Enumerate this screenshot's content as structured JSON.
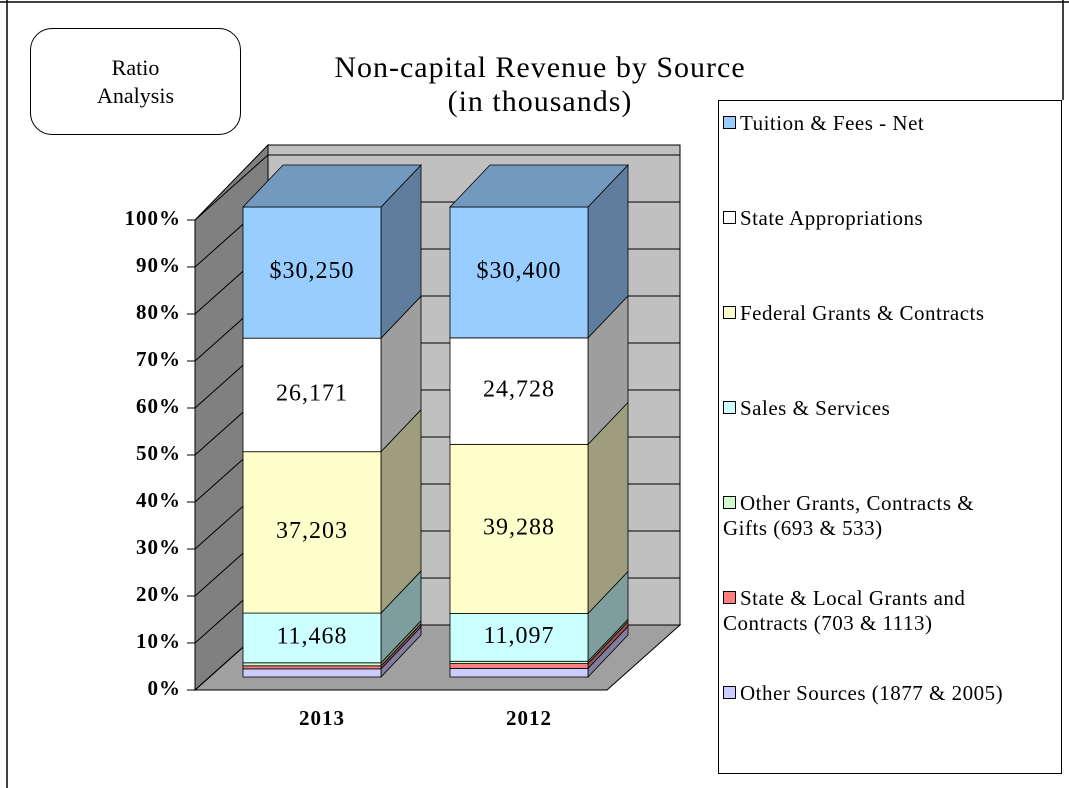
{
  "chart_data": {
    "type": "bar3d_stacked_percent",
    "title": "Non-capital Revenue by Source",
    "subtitle": "(in thousands)",
    "annotation": "Ratio Analysis",
    "categories": [
      "2013",
      "2012"
    ],
    "ylim": [
      0,
      100
    ],
    "yticks": [
      {
        "value": 0,
        "label": "0%"
      },
      {
        "value": 10,
        "label": "10%"
      },
      {
        "value": 20,
        "label": "20%"
      },
      {
        "value": 30,
        "label": "30%"
      },
      {
        "value": 40,
        "label": "40%"
      },
      {
        "value": 50,
        "label": "50%"
      },
      {
        "value": 60,
        "label": "60%"
      },
      {
        "value": 70,
        "label": "70%"
      },
      {
        "value": 80,
        "label": "80%"
      },
      {
        "value": 90,
        "label": "90%"
      },
      {
        "value": 100,
        "label": "100%"
      }
    ],
    "grid": true,
    "legend": "right",
    "series": [
      {
        "name": "Other Sources (1877 & 2005)",
        "color": "#ccccff",
        "values": [
          1877,
          2005
        ]
      },
      {
        "name": "State & Local Grants and Contracts (703 & 1113)",
        "color": "#ff7f7f",
        "values": [
          703,
          1113
        ]
      },
      {
        "name": "Other Grants, Contracts & Gifts (693 & 533)",
        "color": "#ccffcc",
        "values": [
          693,
          533
        ]
      },
      {
        "name": "Sales & Services",
        "color": "#ccffff",
        "values": [
          11468,
          11097
        ],
        "value_labels": [
          "11,468",
          "11,097"
        ]
      },
      {
        "name": "Federal Grants & Contracts",
        "color": "#ffffcc",
        "values": [
          37203,
          39288
        ],
        "value_labels": [
          "37,203",
          "39,288"
        ]
      },
      {
        "name": "State Appropriations",
        "color": "#ffffff",
        "values": [
          26171,
          24728
        ],
        "value_labels": [
          "26,171",
          "24,728"
        ]
      },
      {
        "name": "Tuition & Fees - Net",
        "color": "#99ccff",
        "values": [
          30250,
          30400
        ],
        "value_labels": [
          "$30,250",
          "$30,400"
        ]
      }
    ]
  }
}
